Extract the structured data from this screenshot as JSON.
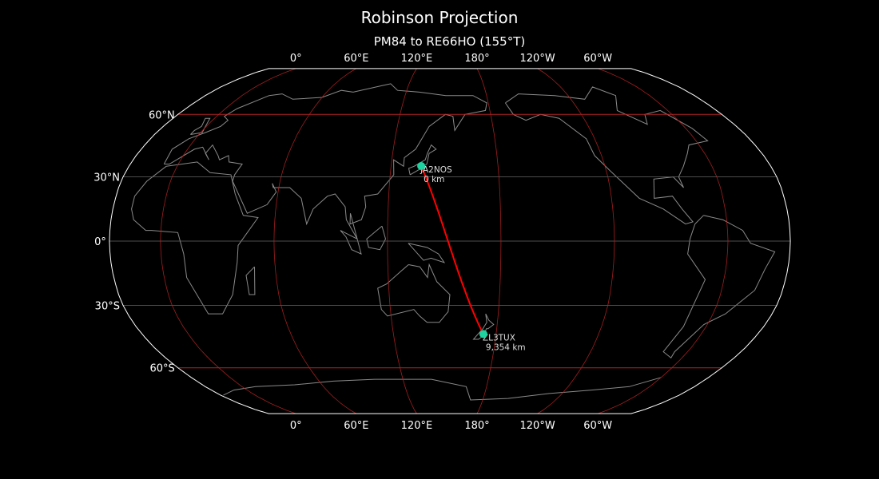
{
  "title": "Robinson Projection",
  "subtitle": "PM84 to RE66HO (155°T)",
  "projection": {
    "name": "Robinson",
    "central_longitude": 153
  },
  "lon_labels": [
    {
      "lon": 0,
      "text": "0°"
    },
    {
      "lon": 60,
      "text": "60°E"
    },
    {
      "lon": 120,
      "text": "120°E"
    },
    {
      "lon": 180,
      "text": "180°"
    },
    {
      "lon": 240,
      "text": "120°W"
    },
    {
      "lon": 300,
      "text": "60°W"
    }
  ],
  "lat_labels": [
    {
      "lat": 60,
      "text": "60°N"
    },
    {
      "lat": 30,
      "text": "30°N"
    },
    {
      "lat": 0,
      "text": "0°"
    },
    {
      "lat": -30,
      "text": "30°S"
    },
    {
      "lat": -60,
      "text": "60°S"
    }
  ],
  "stations": [
    {
      "call": "JA2NOS",
      "distance": "0 km",
      "lat": 35.1,
      "lon": 136.9
    },
    {
      "call": "ZL3TUX",
      "distance": "9,354 km",
      "lat": -43.5,
      "lon": 172.6
    }
  ],
  "colors": {
    "background": "#000000",
    "coast": "#8a8a8a",
    "graticule_major": "#b22222",
    "graticule_minor": "#666666",
    "path": "#ff0000",
    "marker": "#1fd3a0",
    "border": "#ffffff"
  }
}
